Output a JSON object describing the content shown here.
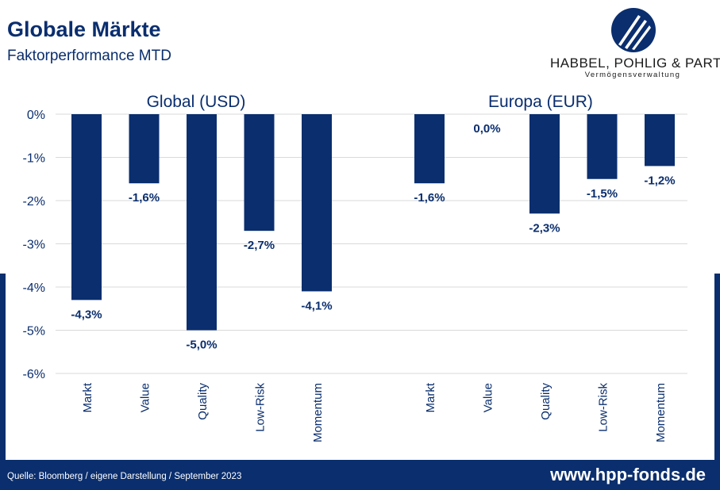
{
  "header": {
    "title": "Globale Märkte",
    "subtitle": "Faktorperformance MTD"
  },
  "logo": {
    "icon": "hpp-logo-icon",
    "company": "HABBEL, POHLIG & PARTNER",
    "tagline": "Vermögensverwaltung"
  },
  "colors": {
    "bar": "#0a2e6e",
    "accent": "#0a2e6e",
    "grid": "#d9d9d9"
  },
  "chart_data": [
    {
      "type": "bar",
      "title": "Global (USD)",
      "categories": [
        "Markt",
        "Value",
        "Quality",
        "Low-Risk",
        "Momentum"
      ],
      "values": [
        -4.3,
        -1.6,
        -5.0,
        -2.7,
        -4.1
      ],
      "data_labels": [
        "-4,3%",
        "-1,6%",
        "-5,0%",
        "-2,7%",
        "-4,1%"
      ],
      "ylim": [
        -6,
        0
      ],
      "yticks": [
        0,
        -1,
        -2,
        -3,
        -4,
        -5,
        -6
      ],
      "ytick_labels": [
        "0%",
        "-1%",
        "-2%",
        "-3%",
        "-4%",
        "-5%",
        "-6%"
      ],
      "grid": true
    },
    {
      "type": "bar",
      "title": "Europa (EUR)",
      "categories": [
        "Markt",
        "Value",
        "Quality",
        "Low-Risk",
        "Momentum"
      ],
      "values": [
        -1.6,
        0.0,
        -2.3,
        -1.5,
        -1.2
      ],
      "data_labels": [
        "-1,6%",
        "0,0%",
        "-2,3%",
        "-1,5%",
        "-1,2%"
      ],
      "ylim": [
        -6,
        0
      ],
      "grid": true
    }
  ],
  "footer": {
    "source": "Quelle: Bloomberg / eigene Darstellung / September 2023",
    "url": "www.hpp-fonds.de"
  }
}
